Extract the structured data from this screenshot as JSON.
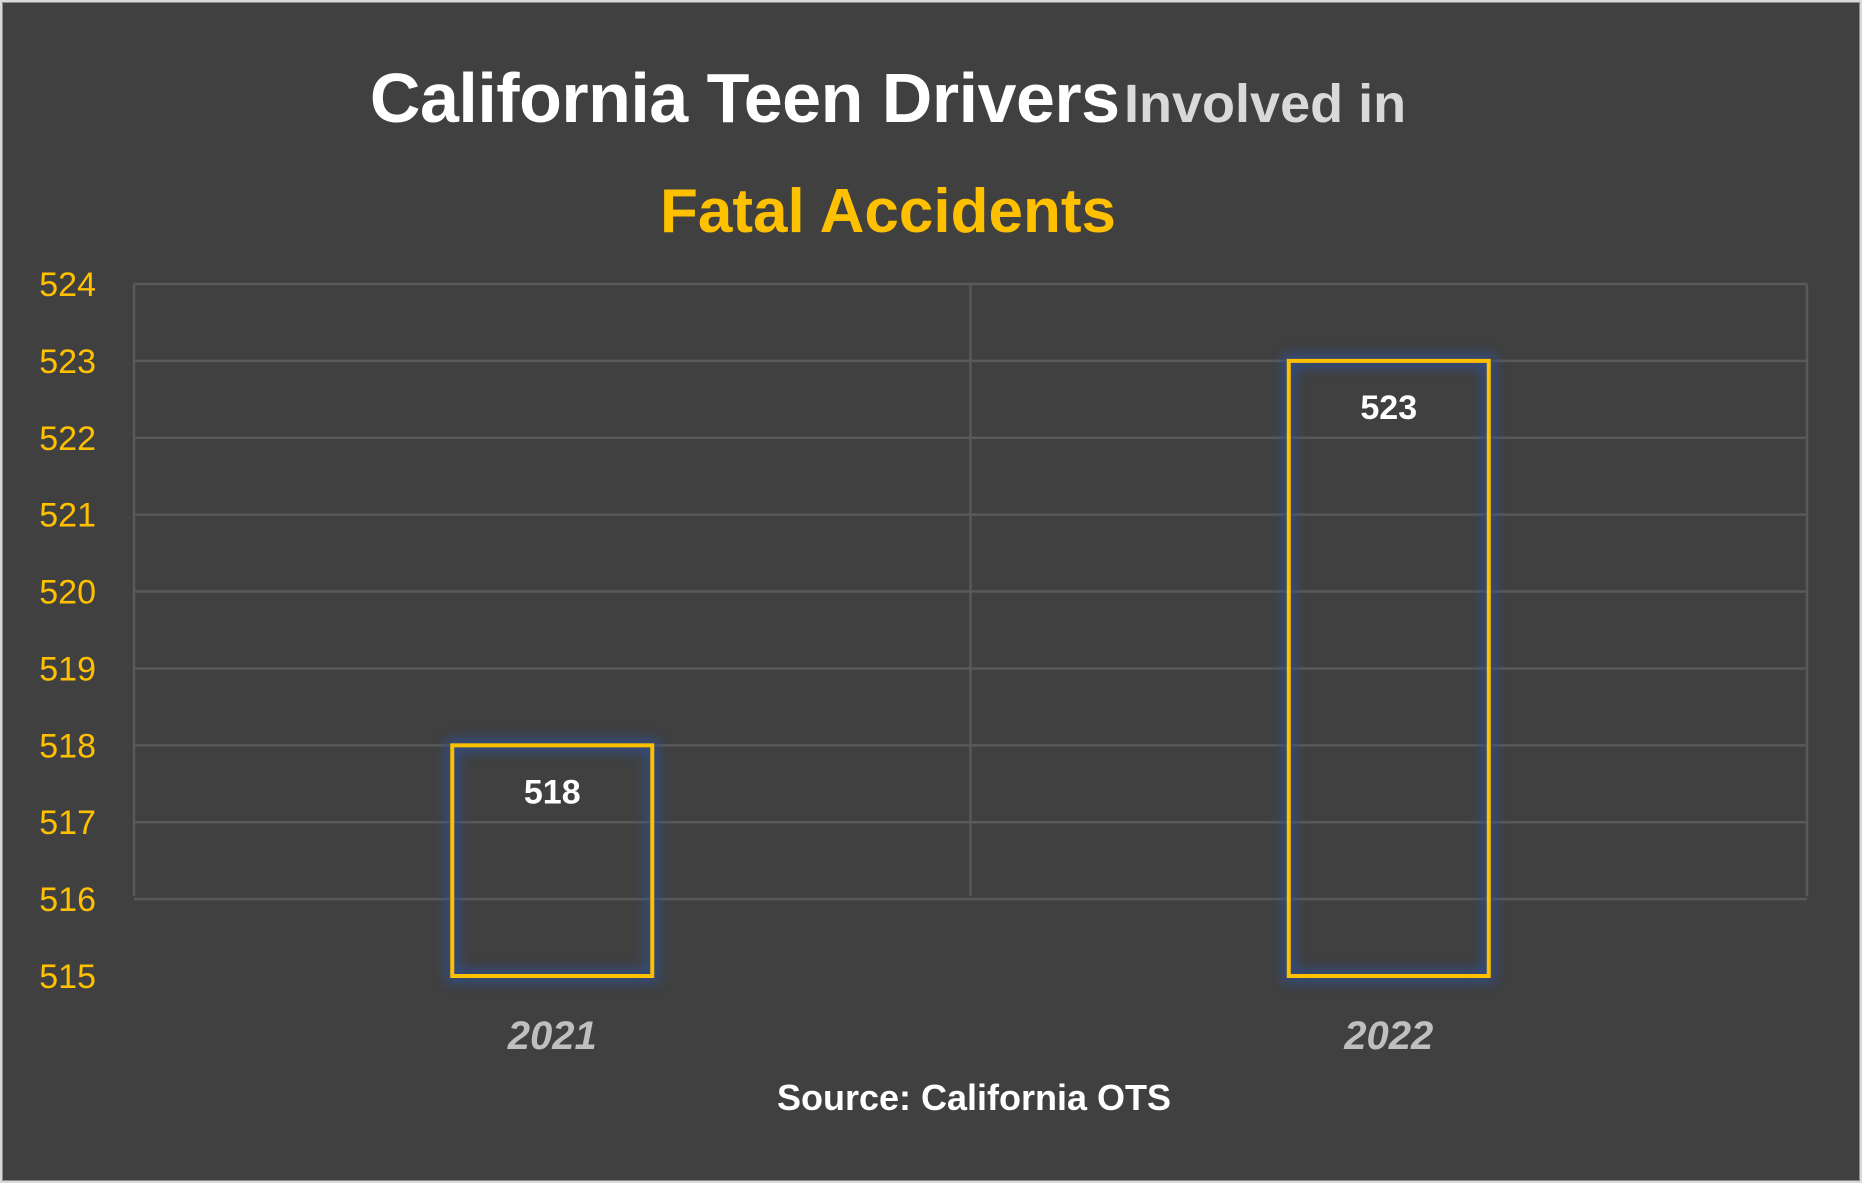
{
  "colors": {
    "background": "#404040",
    "accent": "#ffc000",
    "title": "#ffffff",
    "title_secondary": "#d9d9d9",
    "grid": "#595959",
    "category_label": "#bfbfbf",
    "bar_glow": "#2f4f8f"
  },
  "title": {
    "part1": "California Teen Drivers",
    "part2": "Involved in",
    "part3": "Fatal Accidents"
  },
  "source": "Source: California OTS",
  "chart_data": {
    "type": "bar",
    "categories": [
      "2021",
      "2022"
    ],
    "values": [
      518,
      523
    ],
    "data_labels": [
      "518",
      "523"
    ],
    "title": "California Teen Drivers Involved in Fatal Accidents",
    "xlabel": "",
    "ylabel": "",
    "ylim": [
      515,
      524
    ],
    "yticks": [
      515,
      516,
      517,
      518,
      519,
      520,
      521,
      522,
      523,
      524
    ],
    "grid": true,
    "legend": "none",
    "bar_style": "outline"
  }
}
